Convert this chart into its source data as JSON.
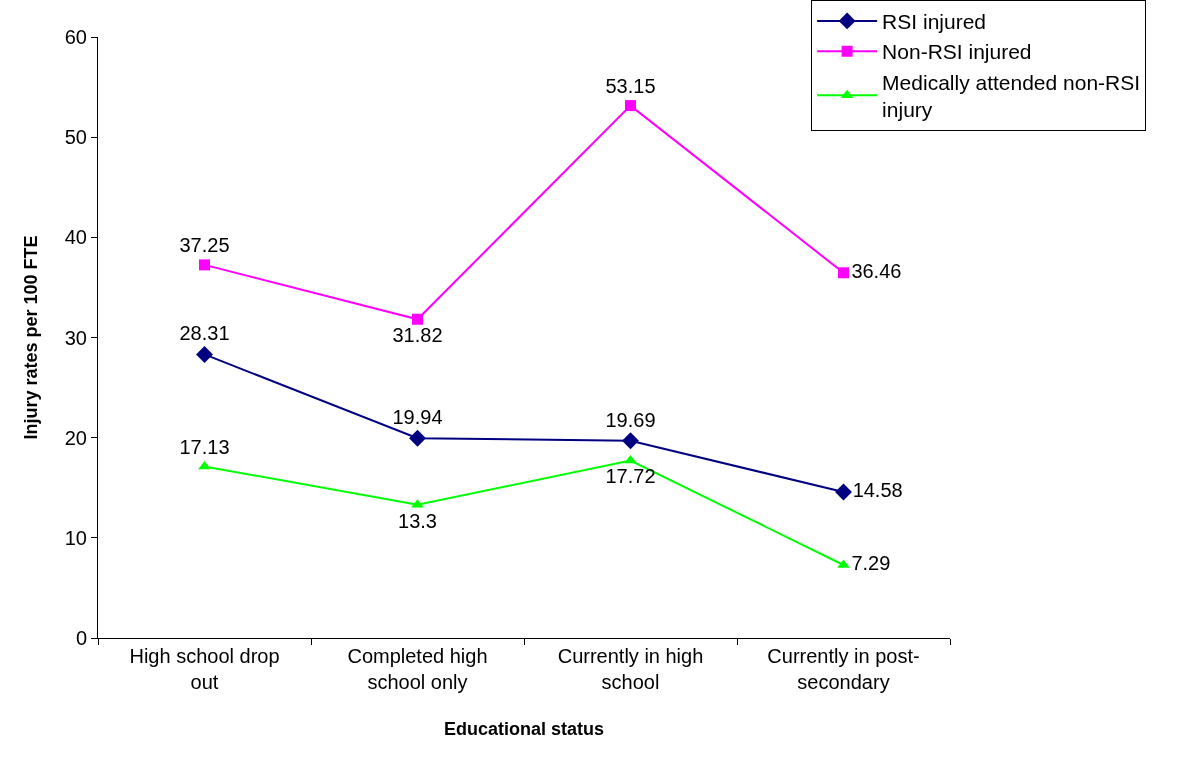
{
  "chart_data": {
    "type": "line",
    "xlabel": "Educational status",
    "ylabel": "Injury rates per 100 FTE",
    "categories": [
      "High school drop out",
      "Completed high school only",
      "Currently in high school",
      "Currently in post-secondary"
    ],
    "series": [
      {
        "name": "RSI injured",
        "color": "#000080",
        "marker": "diamond",
        "values": [
          28.31,
          19.94,
          19.69,
          14.58
        ]
      },
      {
        "name": "Non-RSI injured",
        "color": "#ff00ff",
        "marker": "square",
        "values": [
          37.25,
          31.82,
          53.15,
          36.46
        ]
      },
      {
        "name": "Medically attended non-RSI injury",
        "color": "#00ff00",
        "marker": "triangle",
        "values": [
          17.13,
          13.3,
          17.72,
          7.29
        ]
      }
    ],
    "ylim": [
      0,
      60
    ],
    "yticks": [
      0,
      10,
      20,
      30,
      40,
      50,
      60
    ],
    "grid": false,
    "data_labels": true,
    "legend": "top right",
    "line_style": "solid"
  }
}
